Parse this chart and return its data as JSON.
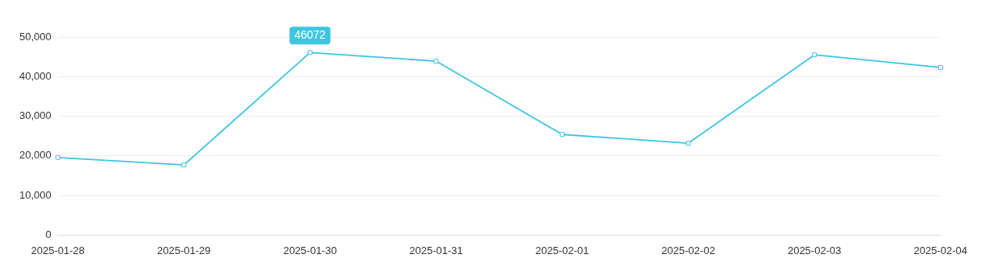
{
  "chart_data": {
    "type": "line",
    "categories": [
      "2025-01-28",
      "2025-01-29",
      "2025-01-30",
      "2025-01-31",
      "2025-02-01",
      "2025-02-02",
      "2025-02-03",
      "2025-02-04"
    ],
    "series": [
      {
        "color": "#3ec6e0",
        "values": [
          19600,
          17700,
          46072,
          43900,
          25400,
          23200,
          45500,
          42300
        ]
      }
    ],
    "ylim": [
      0,
      50000
    ],
    "yticks": [
      0,
      {
        "value": 10000,
        "label": "10,000"
      },
      {
        "value": 20000,
        "label": "20,000"
      },
      {
        "value": 30000,
        "label": "30,000"
      },
      {
        "value": 40000,
        "label": "40,000"
      },
      {
        "value": 50000,
        "label": "50,000"
      }
    ],
    "grid": "y",
    "marker": "square",
    "line_style": "solid",
    "legend": false,
    "annotations": [
      {
        "text": "46072",
        "x": "2025-01-30",
        "y": 46072
      }
    ]
  }
}
